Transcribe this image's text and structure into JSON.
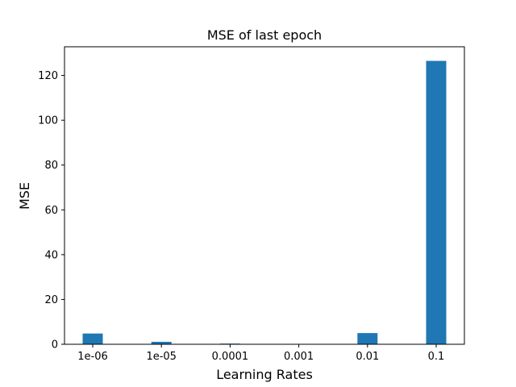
{
  "chart_data": {
    "type": "bar",
    "title": "MSE of last epoch",
    "xlabel": "Learning Rates",
    "ylabel": "MSE",
    "categories": [
      "1e-06",
      "1e-05",
      "0.0001",
      "0.001",
      "0.01",
      "0.1"
    ],
    "values": [
      4.8,
      1.1,
      0.3,
      0.0,
      5.0,
      126.5
    ],
    "ylim": [
      0,
      132.8
    ],
    "yticks": [
      0,
      20,
      40,
      60,
      80,
      100,
      120
    ],
    "grid": false,
    "colors": {
      "bar": "#1f77b4",
      "axis": "#000000",
      "background": "#ffffff"
    }
  }
}
